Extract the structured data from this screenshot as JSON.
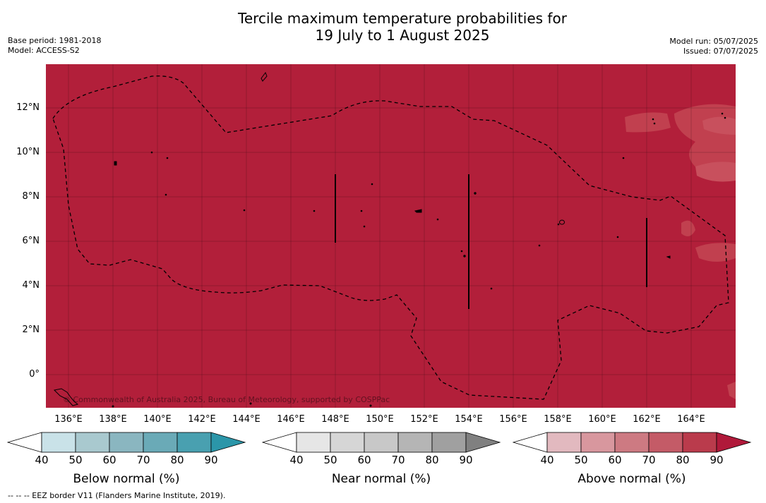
{
  "title": {
    "line1": "Tercile maximum temperature probabilities for",
    "line2": "19 July to 1 August 2025"
  },
  "meta_left": {
    "base_period": "Base period: 1981-2018",
    "model": "Model: ACCESS-S2"
  },
  "meta_right": {
    "model_run": "Model run: 05/07/2025",
    "issued": "Issued: 07/07/2025"
  },
  "map": {
    "fill_color": "#b21f3a",
    "light_patch_color": "#c1404f",
    "copyright": "© Commonwealth of Australia 2025, Bureau of Meteorology, supported by COSPPac",
    "x_ticks": [
      "136°E",
      "138°E",
      "140°E",
      "142°E",
      "144°E",
      "146°E",
      "148°E",
      "150°E",
      "152°E",
      "154°E",
      "156°E",
      "158°E",
      "160°E",
      "162°E",
      "164°E"
    ],
    "y_ticks": [
      "12°N",
      "10°N",
      "8°N",
      "6°N",
      "4°N",
      "2°N",
      "0°"
    ]
  },
  "colorbars": [
    {
      "title": "Below normal (%)",
      "ticks": [
        "40",
        "50",
        "60",
        "70",
        "80",
        "90"
      ],
      "colors": [
        "#ffffff",
        "#c9e2e8",
        "#a9c9cf",
        "#8ab6c0",
        "#6aaab7",
        "#49a0b0",
        "#2b96a9"
      ]
    },
    {
      "title": "Near normal (%)",
      "ticks": [
        "40",
        "50",
        "60",
        "70",
        "80",
        "90"
      ],
      "colors": [
        "#ffffff",
        "#e6e6e6",
        "#d6d6d6",
        "#c8c8c8",
        "#b5b5b5",
        "#a0a0a0",
        "#808080"
      ]
    },
    {
      "title": "Above normal (%)",
      "ticks": [
        "40",
        "50",
        "60",
        "70",
        "80",
        "90"
      ],
      "colors": [
        "#ffffff",
        "#e2b9bf",
        "#d8979e",
        "#cd7a82",
        "#c45b67",
        "#ba3b4c",
        "#b0193a"
      ]
    }
  ],
  "footer": "--  --  -- EEZ border V11 (Flanders Marine Institute, 2019)."
}
